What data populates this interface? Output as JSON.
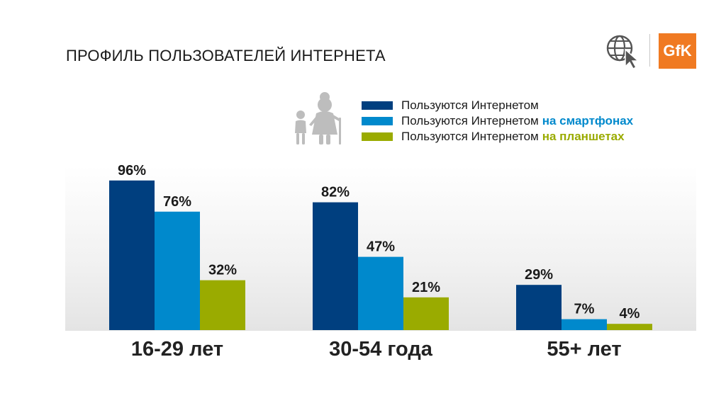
{
  "title": "ПРОФИЛЬ ПОЛЬЗОВАТЕЛЕЙ ИНТЕРНЕТА",
  "logo": {
    "brand": "GfK",
    "icons": [
      "globe-cursor-icon"
    ],
    "brand_color": "#f07a22"
  },
  "illustration": {
    "icon": "grandmother-and-child-icon",
    "color": "#bdbdbd"
  },
  "legend": [
    {
      "prefix": "Пользуются Интернетом",
      "highlight": "",
      "color": "#003f7f"
    },
    {
      "prefix": "Пользуются Интернетом",
      "highlight": "на смартфонах",
      "color": "#0089cc"
    },
    {
      "prefix": "Пользуются Интернетом",
      "highlight": "на планшетах",
      "color": "#9aab00"
    }
  ],
  "chart_data": {
    "type": "bar",
    "categories": [
      "16-29 лет",
      "30-54 года",
      "55+ лет"
    ],
    "series": [
      {
        "name": "Пользуются Интернетом",
        "values": [
          96,
          82,
          29
        ],
        "labels": [
          "96%",
          "82%",
          "29%"
        ],
        "color": "#003f7f"
      },
      {
        "name": "Пользуются Интернетом на смартфонах",
        "values": [
          76,
          47,
          7
        ],
        "labels": [
          "76%",
          "47%",
          "7%"
        ],
        "color": "#0089cc"
      },
      {
        "name": "Пользуются Интернетом на планшетах",
        "values": [
          32,
          21,
          4
        ],
        "labels": [
          "32%",
          "21%",
          "4%"
        ],
        "color": "#9aab00"
      }
    ],
    "ylim": [
      0,
      100
    ],
    "unit": "%",
    "grid": false,
    "legend_position": "top-right"
  }
}
